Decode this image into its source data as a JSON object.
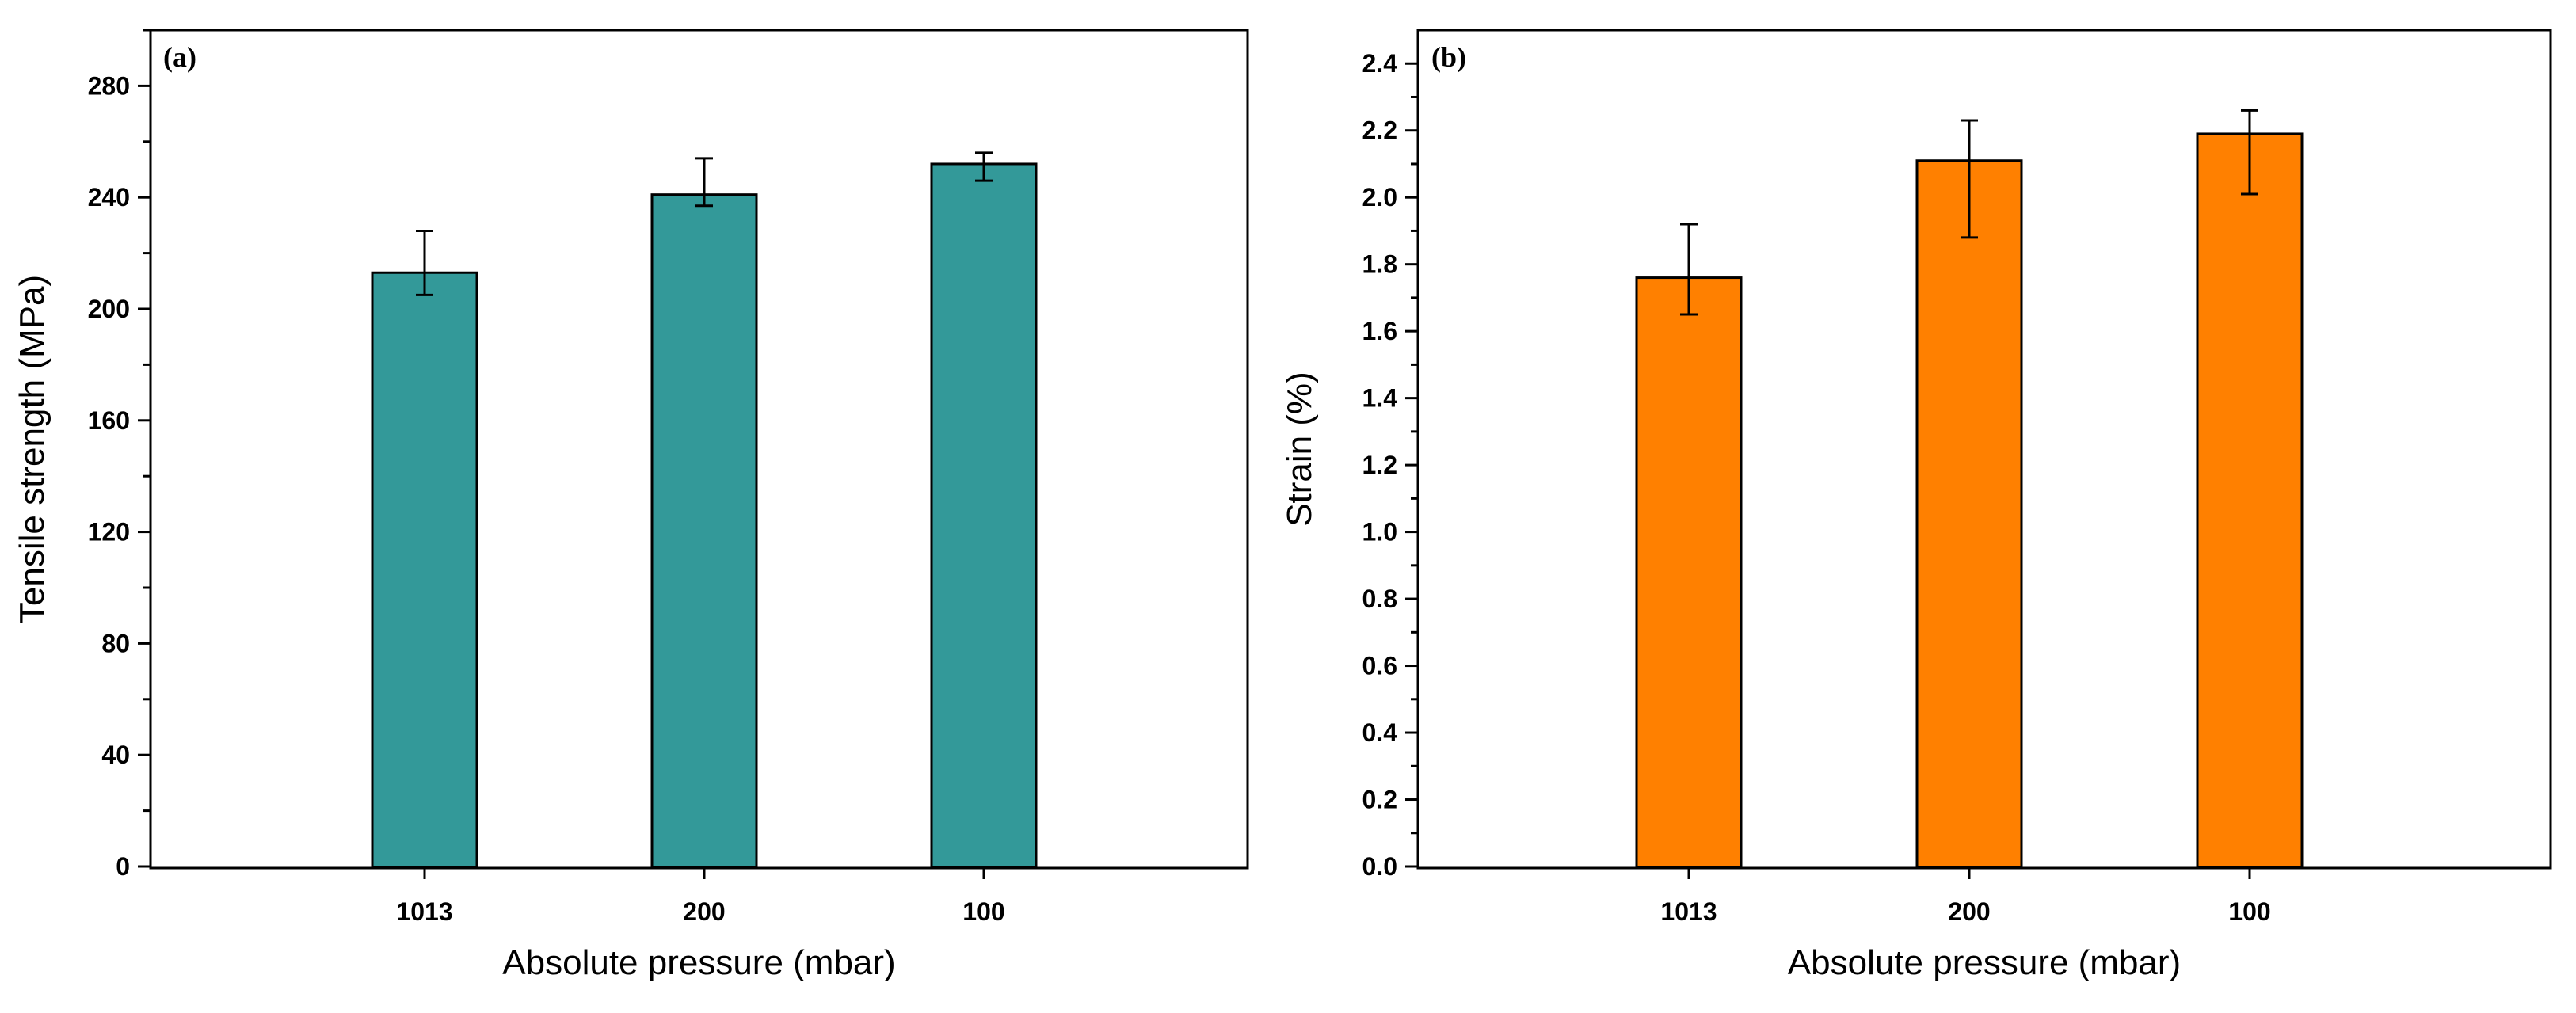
{
  "chart_data": [
    {
      "type": "bar",
      "panel_label": "(a)",
      "categories": [
        "1013",
        "200",
        "100"
      ],
      "values": [
        213,
        241,
        252
      ],
      "error_low": [
        205,
        237,
        246
      ],
      "error_high": [
        228,
        254,
        256
      ],
      "xlabel": "Absolute pressure (mbar)",
      "ylabel": "Tensile strength (MPa)",
      "ylim": [
        0,
        300
      ],
      "yticks": [
        0,
        40,
        80,
        120,
        160,
        200,
        240,
        280
      ],
      "ytick_labels": [
        "0",
        "40",
        "80",
        "120",
        "160",
        "200",
        "240",
        "280"
      ],
      "minor_ticks": [
        20,
        60,
        100,
        140,
        180,
        220,
        260,
        300
      ],
      "bar_color": "#339999",
      "grid": false
    },
    {
      "type": "bar",
      "panel_label": "(b)",
      "categories": [
        "1013",
        "200",
        "100"
      ],
      "values": [
        1.76,
        2.11,
        2.19
      ],
      "error_low": [
        1.65,
        1.88,
        2.01
      ],
      "error_high": [
        1.92,
        2.23,
        2.26
      ],
      "xlabel": "Absolute pressure (mbar)",
      "ylabel": "Strain (%)",
      "ylim": [
        0,
        2.5
      ],
      "yticks": [
        0,
        0.2,
        0.4,
        0.6,
        0.8,
        1.0,
        1.2,
        1.4,
        1.6,
        1.8,
        2.0,
        2.2,
        2.4
      ],
      "ytick_labels": [
        "0.0",
        "0.2",
        "0.4",
        "0.6",
        "0.8",
        "1.0",
        "1.2",
        "1.4",
        "1.6",
        "1.8",
        "2.0",
        "2.2",
        "2.4"
      ],
      "minor_ticks": [
        0.1,
        0.3,
        0.5,
        0.7,
        0.9,
        1.1,
        1.3,
        1.5,
        1.7,
        1.9,
        2.1,
        2.3
      ],
      "bar_color": "#ff8000",
      "grid": false
    }
  ]
}
